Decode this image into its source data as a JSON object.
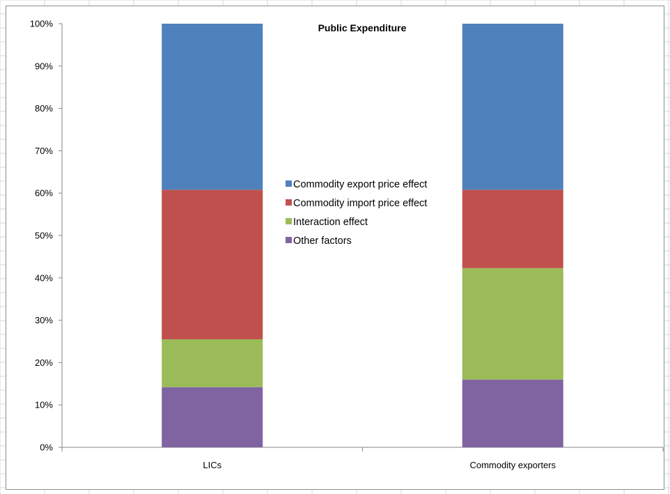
{
  "colors": {
    "commodity_export": "#4f81bd",
    "commodity_import": "#c0504d",
    "interaction": "#9bbb59",
    "other": "#8064a2",
    "axis": "#868686",
    "sheet_grid": "#d0d7e5"
  },
  "chart_data": {
    "type": "bar",
    "stacked": true,
    "percent_stacked": true,
    "title": "Public Expenditure",
    "categories": [
      "LICs",
      "Commodity exporters"
    ],
    "series": [
      {
        "name": "Other factors",
        "color": "#8064a2",
        "values": [
          14.2,
          16.0
        ]
      },
      {
        "name": "Interaction effect",
        "color": "#9bbb59",
        "values": [
          11.3,
          26.3
        ]
      },
      {
        "name": "Commodity import price effect",
        "color": "#c0504d",
        "values": [
          35.3,
          18.5
        ]
      },
      {
        "name": "Commodity export price effect",
        "color": "#4f81bd",
        "values": [
          39.2,
          39.2
        ]
      }
    ],
    "legend_order": [
      "Commodity export price effect",
      "Commodity import price effect",
      "Interaction effect",
      "Other factors"
    ],
    "yticks": [
      "0%",
      "10%",
      "20%",
      "30%",
      "40%",
      "50%",
      "60%",
      "70%",
      "80%",
      "90%",
      "100%"
    ],
    "ylim": [
      0,
      100
    ],
    "xlabel": "",
    "ylabel": "",
    "legend_position": "center",
    "grid": false
  }
}
